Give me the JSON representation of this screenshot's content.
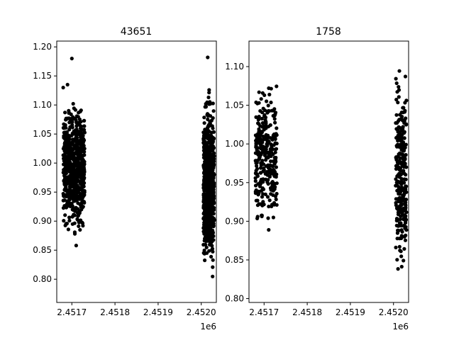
{
  "chart_data": [
    {
      "type": "scatter",
      "title": "43651",
      "xlabel": "",
      "ylabel": "",
      "x_offset_label": "1e6",
      "xlim": [
        2.451665,
        2.452035
      ],
      "ylim": [
        0.76,
        1.21
      ],
      "xticks": [
        {
          "value": 2.4517,
          "label": "2.4517"
        },
        {
          "value": 2.4518,
          "label": "2.4518"
        },
        {
          "value": 2.4519,
          "label": "2.4519"
        },
        {
          "value": 2.452,
          "label": "2.4520"
        }
      ],
      "yticks": [
        {
          "value": 0.8,
          "label": "0.80"
        },
        {
          "value": 0.85,
          "label": "0.85"
        },
        {
          "value": 0.9,
          "label": "0.90"
        },
        {
          "value": 0.95,
          "label": "0.95"
        },
        {
          "value": 1.0,
          "label": "1.00"
        },
        {
          "value": 1.05,
          "label": "1.05"
        },
        {
          "value": 1.1,
          "label": "1.10"
        },
        {
          "value": 1.15,
          "label": "1.15"
        },
        {
          "value": 1.2,
          "label": "1.20"
        }
      ],
      "marker_color": "#000000",
      "clusters": [
        {
          "x_range": [
            2.45168,
            2.45173
          ],
          "y_range": [
            0.86,
            1.12
          ],
          "count": 700
        },
        {
          "x_range": [
            2.452005,
            2.45203
          ],
          "y_range": [
            0.78,
            1.15
          ],
          "count": 700
        }
      ],
      "outliers": [
        {
          "x": 2.4517,
          "y": 1.18
        },
        {
          "x": 2.452015,
          "y": 1.182
        },
        {
          "x": 2.45169,
          "y": 1.135
        },
        {
          "x": 2.45171,
          "y": 0.858
        },
        {
          "x": 2.45168,
          "y": 1.13
        }
      ]
    },
    {
      "type": "scatter",
      "title": "1758",
      "xlabel": "",
      "ylabel": "",
      "x_offset_label": "1e6",
      "xlim": [
        2.451665,
        2.452035
      ],
      "ylim": [
        0.795,
        1.133
      ],
      "xticks": [
        {
          "value": 2.4517,
          "label": "2.4517"
        },
        {
          "value": 2.4518,
          "label": "2.4518"
        },
        {
          "value": 2.4519,
          "label": "2.4519"
        },
        {
          "value": 2.452,
          "label": "2.4520"
        }
      ],
      "yticks": [
        {
          "value": 0.8,
          "label": "0.80"
        },
        {
          "value": 0.85,
          "label": "0.85"
        },
        {
          "value": 0.9,
          "label": "0.90"
        },
        {
          "value": 0.95,
          "label": "0.95"
        },
        {
          "value": 1.0,
          "label": "1.00"
        },
        {
          "value": 1.05,
          "label": "1.05"
        },
        {
          "value": 1.1,
          "label": "1.10"
        }
      ],
      "marker_color": "#000000",
      "clusters": [
        {
          "x_range": [
            2.45168,
            2.45173
          ],
          "y_range": [
            0.875,
            1.095
          ],
          "count": 300
        },
        {
          "x_range": [
            2.452005,
            2.45203
          ],
          "y_range": [
            0.805,
            1.115
          ],
          "count": 280
        }
      ],
      "outliers": []
    }
  ]
}
